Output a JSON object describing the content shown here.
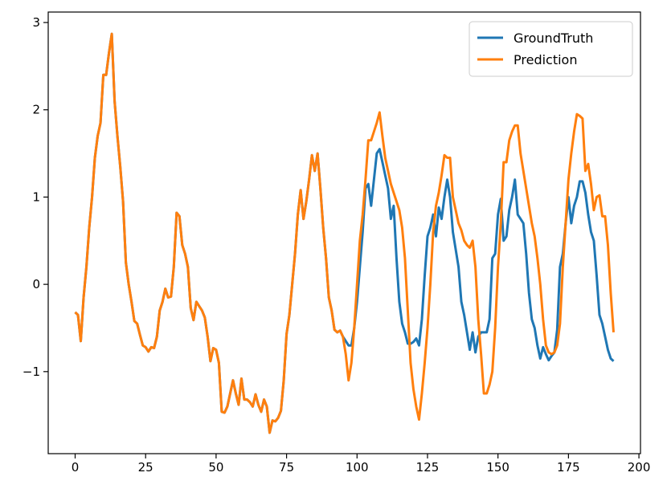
{
  "chart_data": {
    "type": "line",
    "x": [
      0,
      1,
      2,
      3,
      4,
      5,
      6,
      7,
      8,
      9,
      10,
      11,
      12,
      13,
      14,
      15,
      16,
      17,
      18,
      19,
      20,
      21,
      22,
      23,
      24,
      25,
      26,
      27,
      28,
      29,
      30,
      31,
      32,
      33,
      34,
      35,
      36,
      37,
      38,
      39,
      40,
      41,
      42,
      43,
      44,
      45,
      46,
      47,
      48,
      49,
      50,
      51,
      52,
      53,
      54,
      55,
      56,
      57,
      58,
      59,
      60,
      61,
      62,
      63,
      64,
      65,
      66,
      67,
      68,
      69,
      70,
      71,
      72,
      73,
      74,
      75,
      76,
      77,
      78,
      79,
      80,
      81,
      82,
      83,
      84,
      85,
      86,
      87,
      88,
      89,
      90,
      91,
      92,
      93,
      94,
      95,
      96,
      97,
      98,
      99,
      100,
      101,
      102,
      103,
      104,
      105,
      106,
      107,
      108,
      109,
      110,
      111,
      112,
      113,
      114,
      115,
      116,
      117,
      118,
      119,
      120,
      121,
      122,
      123,
      124,
      125,
      126,
      127,
      128,
      129,
      130,
      131,
      132,
      133,
      134,
      135,
      136,
      137,
      138,
      139,
      140,
      141,
      142,
      143,
      144,
      145,
      146,
      147,
      148,
      149,
      150,
      151,
      152,
      153,
      154,
      155,
      156,
      157,
      158,
      159,
      160,
      161,
      162,
      163,
      164,
      165,
      166,
      167,
      168,
      169,
      170,
      171,
      172,
      173,
      174,
      175,
      176,
      177,
      178,
      179,
      180,
      181,
      182,
      183,
      184,
      185,
      186,
      187,
      188,
      189,
      190,
      191
    ],
    "series": [
      {
        "name": "GroundTruth",
        "color": "#1f77b4",
        "values": [
          -0.32,
          -0.35,
          -0.65,
          -0.15,
          0.2,
          0.65,
          1.0,
          1.45,
          1.7,
          1.85,
          2.4,
          2.4,
          2.65,
          2.87,
          2.1,
          1.7,
          1.35,
          0.95,
          0.25,
          0.0,
          -0.2,
          -0.42,
          -0.45,
          -0.58,
          -0.7,
          -0.72,
          -0.77,
          -0.72,
          -0.73,
          -0.6,
          -0.3,
          -0.2,
          -0.05,
          -0.15,
          -0.14,
          0.2,
          0.82,
          0.78,
          0.45,
          0.35,
          0.2,
          -0.27,
          -0.41,
          -0.2,
          -0.25,
          -0.3,
          -0.38,
          -0.6,
          -0.88,
          -0.73,
          -0.75,
          -0.9,
          -1.46,
          -1.47,
          -1.4,
          -1.25,
          -1.1,
          -1.25,
          -1.38,
          -1.08,
          -1.32,
          -1.32,
          -1.35,
          -1.4,
          -1.26,
          -1.38,
          -1.46,
          -1.32,
          -1.4,
          -1.7,
          -1.56,
          -1.57,
          -1.53,
          -1.45,
          -1.1,
          -0.57,
          -0.35,
          0.0,
          0.35,
          0.8,
          1.08,
          0.75,
          0.95,
          1.2,
          1.48,
          1.3,
          1.5,
          1.1,
          0.65,
          0.3,
          -0.15,
          -0.3,
          -0.52,
          -0.55,
          -0.53,
          -0.6,
          -0.65,
          -0.7,
          -0.7,
          -0.5,
          -0.2,
          0.2,
          0.6,
          1.1,
          1.15,
          0.9,
          1.2,
          1.5,
          1.55,
          1.4,
          1.25,
          1.1,
          0.75,
          0.9,
          0.3,
          -0.2,
          -0.45,
          -0.55,
          -0.68,
          -0.68,
          -0.66,
          -0.62,
          -0.7,
          -0.4,
          0.1,
          0.55,
          0.65,
          0.8,
          0.55,
          0.88,
          0.75,
          1.0,
          1.2,
          1.0,
          0.6,
          0.4,
          0.2,
          -0.2,
          -0.35,
          -0.55,
          -0.75,
          -0.55,
          -0.78,
          -0.6,
          -0.55,
          -0.55,
          -0.55,
          -0.4,
          0.3,
          0.35,
          0.8,
          0.98,
          0.5,
          0.55,
          0.85,
          1.0,
          1.2,
          0.8,
          0.75,
          0.7,
          0.35,
          -0.1,
          -0.4,
          -0.5,
          -0.7,
          -0.85,
          -0.72,
          -0.8,
          -0.87,
          -0.82,
          -0.78,
          -0.52,
          0.2,
          0.35,
          0.7,
          1.0,
          0.7,
          0.9,
          1.0,
          1.18,
          1.18,
          1.05,
          0.8,
          0.6,
          0.5,
          0.1,
          -0.35,
          -0.45,
          -0.6,
          -0.75,
          -0.85,
          -0.88
        ]
      },
      {
        "name": "Prediction",
        "color": "#ff7f0e",
        "values": [
          -0.32,
          -0.35,
          -0.65,
          -0.15,
          0.2,
          0.65,
          1.0,
          1.45,
          1.7,
          1.85,
          2.4,
          2.4,
          2.65,
          2.87,
          2.1,
          1.7,
          1.35,
          0.95,
          0.25,
          0.0,
          -0.2,
          -0.42,
          -0.45,
          -0.58,
          -0.7,
          -0.72,
          -0.77,
          -0.72,
          -0.73,
          -0.6,
          -0.3,
          -0.2,
          -0.05,
          -0.15,
          -0.14,
          0.2,
          0.82,
          0.78,
          0.45,
          0.35,
          0.2,
          -0.27,
          -0.41,
          -0.2,
          -0.25,
          -0.3,
          -0.38,
          -0.6,
          -0.88,
          -0.73,
          -0.75,
          -0.9,
          -1.46,
          -1.47,
          -1.4,
          -1.25,
          -1.1,
          -1.25,
          -1.38,
          -1.08,
          -1.32,
          -1.32,
          -1.35,
          -1.4,
          -1.26,
          -1.38,
          -1.46,
          -1.32,
          -1.4,
          -1.7,
          -1.56,
          -1.57,
          -1.53,
          -1.45,
          -1.1,
          -0.57,
          -0.35,
          0.0,
          0.35,
          0.8,
          1.08,
          0.75,
          0.95,
          1.2,
          1.48,
          1.3,
          1.5,
          1.1,
          0.65,
          0.3,
          -0.15,
          -0.3,
          -0.52,
          -0.55,
          -0.53,
          -0.6,
          -0.8,
          -1.1,
          -0.9,
          -0.5,
          0.0,
          0.5,
          0.8,
          1.2,
          1.65,
          1.65,
          1.75,
          1.85,
          1.97,
          1.7,
          1.45,
          1.3,
          1.15,
          1.05,
          0.95,
          0.85,
          0.65,
          0.3,
          -0.3,
          -0.9,
          -1.2,
          -1.4,
          -1.55,
          -1.25,
          -0.9,
          -0.5,
          0.0,
          0.6,
          0.9,
          1.05,
          1.25,
          1.48,
          1.45,
          1.45,
          1.0,
          0.85,
          0.7,
          0.62,
          0.5,
          0.45,
          0.42,
          0.5,
          0.2,
          -0.4,
          -0.8,
          -1.25,
          -1.25,
          -1.15,
          -1.0,
          -0.5,
          0.2,
          0.7,
          1.4,
          1.4,
          1.65,
          1.75,
          1.82,
          1.82,
          1.5,
          1.3,
          1.1,
          0.9,
          0.7,
          0.55,
          0.3,
          0.0,
          -0.4,
          -0.7,
          -0.78,
          -0.8,
          -0.78,
          -0.7,
          -0.45,
          0.2,
          0.7,
          1.2,
          1.5,
          1.75,
          1.95,
          1.93,
          1.9,
          1.3,
          1.38,
          1.15,
          0.85,
          1.0,
          1.02,
          0.78,
          0.78,
          0.45,
          -0.1,
          -0.55
        ]
      }
    ],
    "xlim": [
      -9.55,
      200.55
    ],
    "xticks": [
      0,
      25,
      50,
      75,
      100,
      125,
      150,
      175,
      200
    ],
    "ylim": [
      -1.94,
      3.12
    ],
    "yticks": [
      {
        "value": -1,
        "label": "−1"
      },
      0,
      1,
      2,
      3
    ],
    "grid": false,
    "legend": "upper right"
  }
}
